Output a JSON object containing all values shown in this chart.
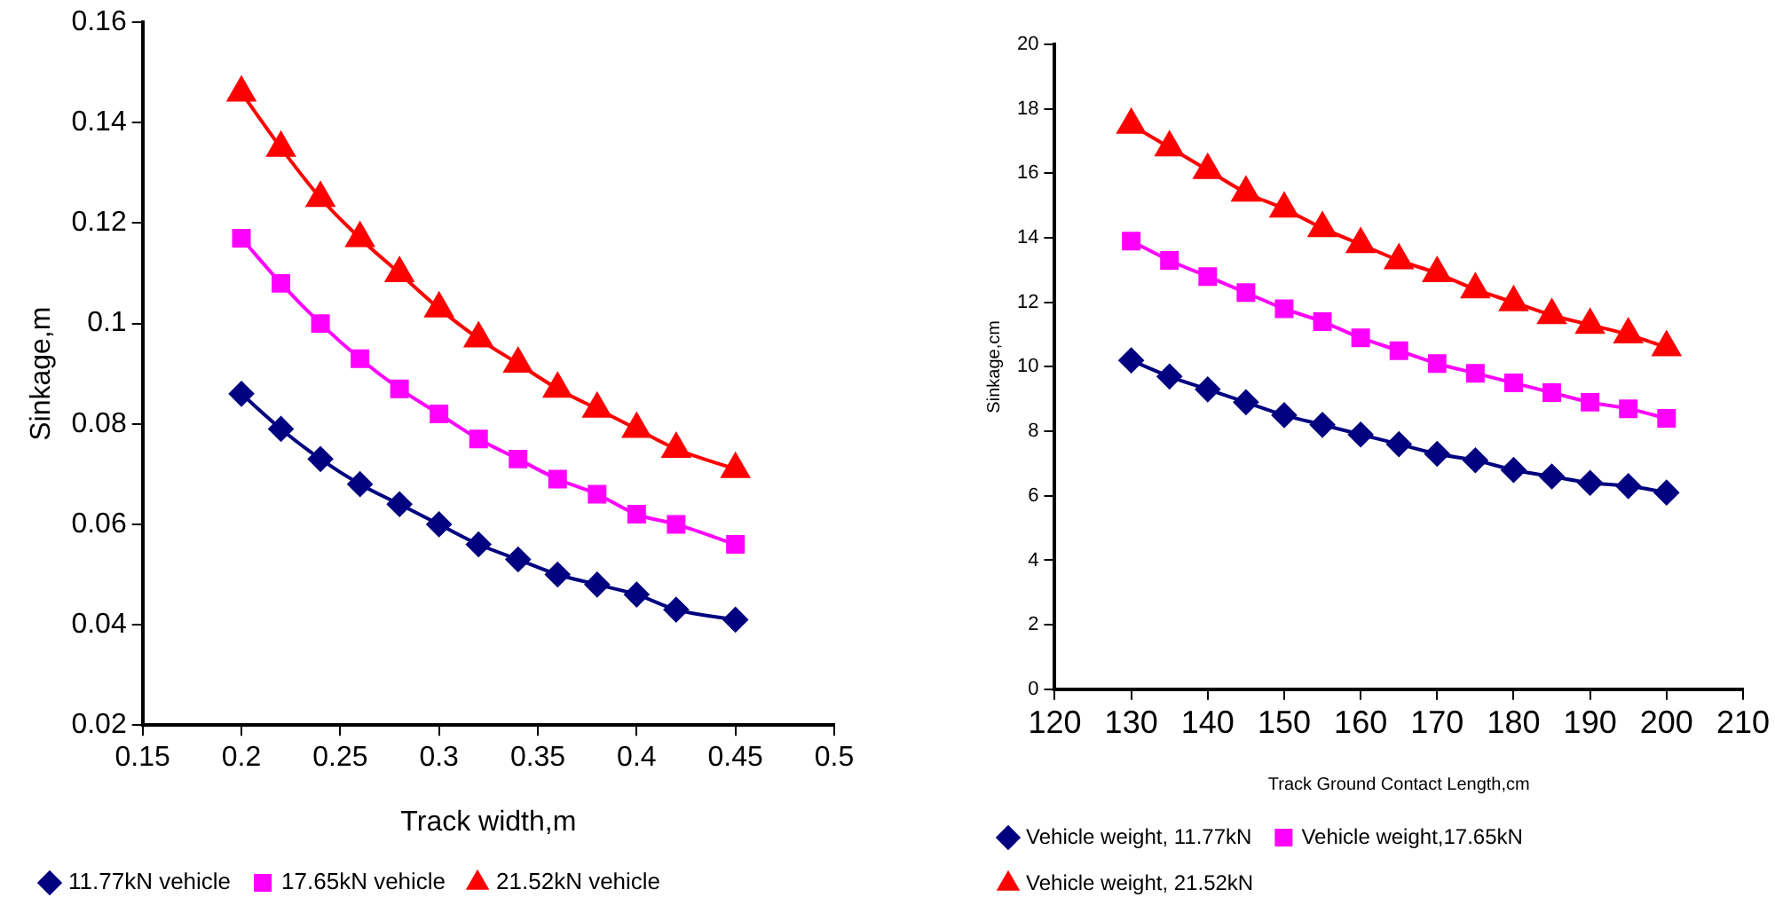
{
  "chart_data": [
    {
      "type": "line",
      "xlabel": "Track width,m",
      "ylabel": "Sinkage,m",
      "x": [
        0.2,
        0.22,
        0.24,
        0.26,
        0.28,
        0.3,
        0.32,
        0.34,
        0.36,
        0.38,
        0.4,
        0.42,
        0.45
      ],
      "xlim": [
        0.15,
        0.5
      ],
      "xticks": [
        0.15,
        0.2,
        0.25,
        0.3,
        0.35,
        0.4,
        0.45,
        0.5
      ],
      "ylim": [
        0.02,
        0.16
      ],
      "yticks": [
        0.02,
        0.04,
        0.06,
        0.08,
        0.1,
        0.12,
        0.14,
        0.16
      ],
      "grid": false,
      "legend": "bottom",
      "line_style": "solid",
      "series": [
        {
          "name": "11.77kN vehicle",
          "color": "#000080",
          "marker": "diamond",
          "values": [
            0.086,
            0.079,
            0.073,
            0.068,
            0.064,
            0.06,
            0.056,
            0.053,
            0.05,
            0.048,
            0.046,
            0.043,
            0.041
          ]
        },
        {
          "name": "17.65kN vehicle",
          "color": "#ff00ff",
          "marker": "square",
          "values": [
            0.117,
            0.108,
            0.1,
            0.093,
            0.087,
            0.082,
            0.077,
            0.073,
            0.069,
            0.066,
            0.062,
            0.06,
            0.056
          ]
        },
        {
          "name": "21.52kN vehicle",
          "color": "#ff0000",
          "marker": "triangle",
          "values": [
            0.146,
            0.135,
            0.125,
            0.117,
            0.11,
            0.103,
            0.097,
            0.092,
            0.087,
            0.083,
            0.079,
            0.075,
            0.071
          ]
        }
      ]
    },
    {
      "type": "line",
      "xlabel": "Track Ground Contact Length,cm",
      "ylabel": "Sinkage,cm",
      "x": [
        130,
        135,
        140,
        145,
        150,
        155,
        160,
        165,
        170,
        175,
        180,
        185,
        190,
        195,
        200
      ],
      "xlim": [
        120,
        210
      ],
      "xticks": [
        120,
        130,
        140,
        150,
        160,
        170,
        180,
        190,
        200,
        210
      ],
      "ylim": [
        0,
        20
      ],
      "yticks": [
        0,
        2,
        4,
        6,
        8,
        10,
        12,
        14,
        16,
        18,
        20
      ],
      "grid": false,
      "legend": "bottom",
      "line_style": "solid",
      "series": [
        {
          "name": "Vehicle weight, 11.77kN",
          "color": "#000080",
          "marker": "diamond",
          "values": [
            10.2,
            9.7,
            9.3,
            8.9,
            8.5,
            8.2,
            7.9,
            7.6,
            7.3,
            7.1,
            6.8,
            6.6,
            6.4,
            6.3,
            6.1
          ]
        },
        {
          "name": "Vehicle weight,17.65kN",
          "color": "#ff00ff",
          "marker": "square",
          "values": [
            13.9,
            13.3,
            12.8,
            12.3,
            11.8,
            11.4,
            10.9,
            10.5,
            10.1,
            9.8,
            9.5,
            9.2,
            8.9,
            8.7,
            8.4
          ]
        },
        {
          "name": "Vehicle weight, 21.52kN",
          "color": "#ff0000",
          "marker": "triangle",
          "values": [
            17.5,
            16.8,
            16.1,
            15.4,
            14.9,
            14.3,
            13.8,
            13.3,
            12.9,
            12.4,
            12.0,
            11.6,
            11.3,
            11.0,
            10.6
          ]
        }
      ]
    }
  ]
}
